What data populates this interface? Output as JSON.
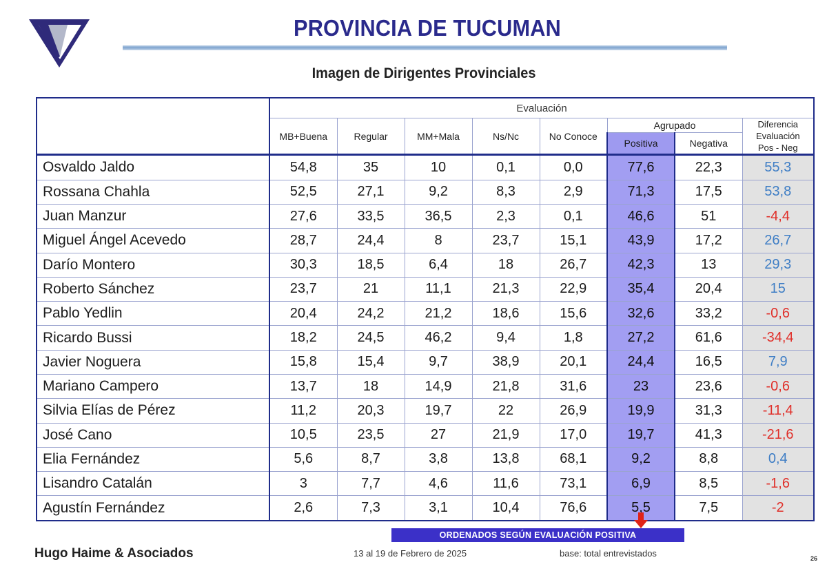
{
  "header": {
    "title": "PROVINCIA DE TUCUMAN",
    "subtitle": "Imagen de Dirigentes Provinciales"
  },
  "logo": {
    "icon": "triangle-logo",
    "colors": [
      "#2f2a7a",
      "#9aa0b8"
    ]
  },
  "table": {
    "group_header": "Evaluación",
    "agrupado_header": "Agrupado",
    "columns": [
      "MB+Buena",
      "Regular",
      "MM+Mala",
      "Ns/Nc",
      "No Conoce",
      "Positiva",
      "Negativa"
    ],
    "diferencia_header": [
      "Diferencia",
      "Evaluación",
      "Pos - Neg"
    ],
    "rows": [
      {
        "name": "Osvaldo Jaldo",
        "values": [
          "54,8",
          "35",
          "10",
          "0,1",
          "0,0",
          "77,6",
          "22,3"
        ],
        "diff": "55,3"
      },
      {
        "name": "Rossana Chahla",
        "values": [
          "52,5",
          "27,1",
          "9,2",
          "8,3",
          "2,9",
          "71,3",
          "17,5"
        ],
        "diff": "53,8"
      },
      {
        "name": "Juan Manzur",
        "values": [
          "27,6",
          "33,5",
          "36,5",
          "2,3",
          "0,1",
          "46,6",
          "51"
        ],
        "diff": "-4,4"
      },
      {
        "name": "Miguel Ángel Acevedo",
        "values": [
          "28,7",
          "24,4",
          "8",
          "23,7",
          "15,1",
          "43,9",
          "17,2"
        ],
        "diff": "26,7"
      },
      {
        "name": "Darío Montero",
        "values": [
          "30,3",
          "18,5",
          "6,4",
          "18",
          "26,7",
          "42,3",
          "13"
        ],
        "diff": "29,3"
      },
      {
        "name": "Roberto Sánchez",
        "values": [
          "23,7",
          "21",
          "11,1",
          "21,3",
          "22,9",
          "35,4",
          "20,4"
        ],
        "diff": "15"
      },
      {
        "name": "Pablo Yedlin",
        "values": [
          "20,4",
          "24,2",
          "21,2",
          "18,6",
          "15,6",
          "32,6",
          "33,2"
        ],
        "diff": "-0,6"
      },
      {
        "name": "Ricardo Bussi",
        "values": [
          "18,2",
          "24,5",
          "46,2",
          "9,4",
          "1,8",
          "27,2",
          "61,6"
        ],
        "diff": "-34,4"
      },
      {
        "name": "Javier Noguera",
        "values": [
          "15,8",
          "15,4",
          "9,7",
          "38,9",
          "20,1",
          "24,4",
          "16,5"
        ],
        "diff": "7,9"
      },
      {
        "name": "Mariano Campero",
        "values": [
          "13,7",
          "18",
          "14,9",
          "21,8",
          "31,6",
          "23",
          "23,6"
        ],
        "diff": "-0,6"
      },
      {
        "name": "Silvia Elías de Pérez",
        "values": [
          "11,2",
          "20,3",
          "19,7",
          "22",
          "26,9",
          "19,9",
          "31,3"
        ],
        "diff": "-11,4"
      },
      {
        "name": "José Cano",
        "values": [
          "10,5",
          "23,5",
          "27",
          "21,9",
          "17,0",
          "19,7",
          "41,3"
        ],
        "diff": "-21,6"
      },
      {
        "name": "Elia Fernández",
        "values": [
          "5,6",
          "8,7",
          "3,8",
          "13,8",
          "68,1",
          "9,2",
          "8,8"
        ],
        "diff": "0,4"
      },
      {
        "name": "Lisandro Catalán",
        "values": [
          "3",
          "7,7",
          "4,6",
          "11,6",
          "73,1",
          "6,9",
          "8,5"
        ],
        "diff": "-1,6"
      },
      {
        "name": "Agustín Fernández",
        "values": [
          "2,6",
          "7,3",
          "3,1",
          "10,4",
          "76,6",
          "5,5",
          "7,5"
        ],
        "diff": "-2"
      }
    ]
  },
  "colors": {
    "positive_column": "#a29ef2",
    "diff_positive": "#3f7ec5",
    "diff_negative": "#e0302a",
    "banner": "#3b30c8"
  },
  "sort_note": "ORDENADOS SEGÚN  EVALUACIÓN  POSITIVA",
  "footer": {
    "company": "Hugo Haime & Asociados",
    "date": "13 al 19 de Febrero de 2025",
    "base": "base: total entrevistados",
    "page": "26"
  }
}
